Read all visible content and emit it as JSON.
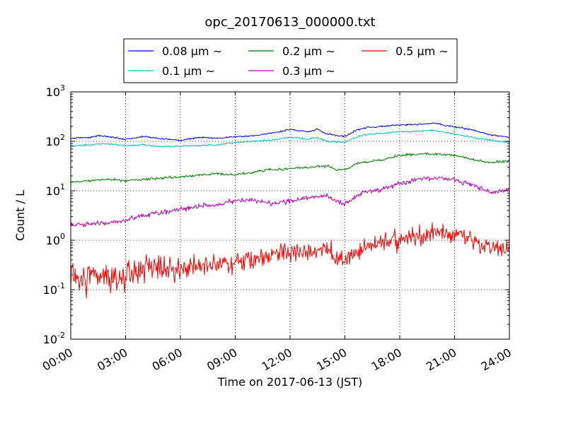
{
  "chart_data": {
    "type": "line",
    "title": "opc_20170613_000000.txt",
    "xlabel": "Time on 2017-06-13 (JST)",
    "ylabel": "Count / L",
    "yscale": "log",
    "ylim": [
      0.01,
      1000
    ],
    "x_range_hours": [
      0,
      24
    ],
    "x_tick_hours": [
      0,
      3,
      6,
      9,
      12,
      15,
      18,
      21,
      24
    ],
    "x_tick_labels": [
      "00:00",
      "03:00",
      "06:00",
      "09:00",
      "12:00",
      "15:00",
      "18:00",
      "21:00",
      "24:00"
    ],
    "y_tick_values": [
      0.01,
      0.1,
      1,
      10,
      100,
      1000
    ],
    "y_tick_base": [
      "10",
      "10",
      "10",
      "10",
      "10",
      "10"
    ],
    "y_tick_exponents": [
      "-2",
      "-1",
      "0",
      "1",
      "2",
      "3"
    ],
    "grid": true,
    "legend": {
      "placement": "top-center",
      "columns": 3
    },
    "series": [
      {
        "name": "0.08 μm ~",
        "color": "#0000ff",
        "noise": 0.012,
        "points": [
          [
            0,
            115
          ],
          [
            1,
            120
          ],
          [
            1.5,
            130
          ],
          [
            2,
            125
          ],
          [
            3,
            110
          ],
          [
            4,
            125
          ],
          [
            5,
            112
          ],
          [
            6,
            105
          ],
          [
            7,
            120
          ],
          [
            8,
            115
          ],
          [
            9,
            125
          ],
          [
            10,
            130
          ],
          [
            11,
            145
          ],
          [
            12,
            175
          ],
          [
            13,
            155
          ],
          [
            13.5,
            175
          ],
          [
            14,
            140
          ],
          [
            15,
            125
          ],
          [
            15.5,
            160
          ],
          [
            16,
            185
          ],
          [
            17,
            200
          ],
          [
            18,
            215
          ],
          [
            19,
            220
          ],
          [
            20,
            230
          ],
          [
            21,
            195
          ],
          [
            22,
            170
          ],
          [
            23,
            135
          ],
          [
            24,
            120
          ]
        ]
      },
      {
        "name": "0.1 μm ~",
        "color": "#00bfbf",
        "noise": 0.012,
        "points": [
          [
            0,
            80
          ],
          [
            1,
            85
          ],
          [
            2,
            90
          ],
          [
            3,
            82
          ],
          [
            4,
            85
          ],
          [
            5,
            78
          ],
          [
            6,
            80
          ],
          [
            7,
            82
          ],
          [
            8,
            85
          ],
          [
            9,
            95
          ],
          [
            10,
            100
          ],
          [
            11,
            105
          ],
          [
            12,
            120
          ],
          [
            13,
            110
          ],
          [
            13.5,
            120
          ],
          [
            14,
            100
          ],
          [
            15,
            95
          ],
          [
            15.5,
            115
          ],
          [
            16,
            135
          ],
          [
            17,
            145
          ],
          [
            18,
            155
          ],
          [
            19,
            160
          ],
          [
            20,
            165
          ],
          [
            21,
            140
          ],
          [
            22,
            120
          ],
          [
            23,
            105
          ],
          [
            24,
            95
          ]
        ]
      },
      {
        "name": "0.2 μm ~",
        "color": "#008000",
        "noise": 0.018,
        "points": [
          [
            0,
            15
          ],
          [
            1,
            16
          ],
          [
            2,
            17
          ],
          [
            3,
            16
          ],
          [
            4,
            17
          ],
          [
            5,
            18
          ],
          [
            6,
            19
          ],
          [
            7,
            21
          ],
          [
            8,
            22
          ],
          [
            9,
            21
          ],
          [
            10,
            24
          ],
          [
            11,
            27
          ],
          [
            12,
            28
          ],
          [
            13,
            30
          ],
          [
            14,
            32
          ],
          [
            14.5,
            27
          ],
          [
            15,
            26
          ],
          [
            15.5,
            33
          ],
          [
            16,
            38
          ],
          [
            17,
            42
          ],
          [
            18,
            52
          ],
          [
            19,
            55
          ],
          [
            20,
            56
          ],
          [
            21,
            52
          ],
          [
            22,
            43
          ],
          [
            23,
            37
          ],
          [
            24,
            40
          ]
        ]
      },
      {
        "name": "0.3 μm ~",
        "color": "#bf00bf",
        "noise": 0.035,
        "points": [
          [
            0,
            2
          ],
          [
            1,
            2.1
          ],
          [
            2,
            2.2
          ],
          [
            3,
            2.5
          ],
          [
            4,
            3.2
          ],
          [
            5,
            3.7
          ],
          [
            6,
            4.2
          ],
          [
            7,
            5
          ],
          [
            8,
            5.2
          ],
          [
            9,
            6.5
          ],
          [
            10,
            6.5
          ],
          [
            11,
            5.5
          ],
          [
            12,
            6.2
          ],
          [
            13,
            7
          ],
          [
            14,
            8
          ],
          [
            14.5,
            6
          ],
          [
            15,
            5.5
          ],
          [
            15.5,
            7
          ],
          [
            16,
            9.5
          ],
          [
            17,
            10.5
          ],
          [
            18,
            14
          ],
          [
            19,
            17.5
          ],
          [
            20,
            18
          ],
          [
            21,
            17
          ],
          [
            22,
            13
          ],
          [
            23,
            9
          ],
          [
            24,
            11
          ]
        ]
      },
      {
        "name": "0.5 μm ~",
        "color": "#ff0000",
        "noise": 0.14,
        "points": [
          [
            0,
            0.16
          ],
          [
            1,
            0.18
          ],
          [
            2,
            0.17
          ],
          [
            3,
            0.2
          ],
          [
            4,
            0.22
          ],
          [
            5,
            0.26
          ],
          [
            6,
            0.25
          ],
          [
            7,
            0.3
          ],
          [
            8,
            0.32
          ],
          [
            9,
            0.38
          ],
          [
            10,
            0.42
          ],
          [
            11,
            0.5
          ],
          [
            12,
            0.6
          ],
          [
            13,
            0.6
          ],
          [
            14,
            0.65
          ],
          [
            14.5,
            0.45
          ],
          [
            15,
            0.42
          ],
          [
            15.5,
            0.55
          ],
          [
            16,
            0.7
          ],
          [
            17,
            0.85
          ],
          [
            18,
            1.05
          ],
          [
            19,
            1.2
          ],
          [
            20,
            1.4
          ],
          [
            21,
            1.3
          ],
          [
            22,
            1.0
          ],
          [
            23,
            0.68
          ],
          [
            24,
            0.6
          ]
        ]
      }
    ]
  }
}
